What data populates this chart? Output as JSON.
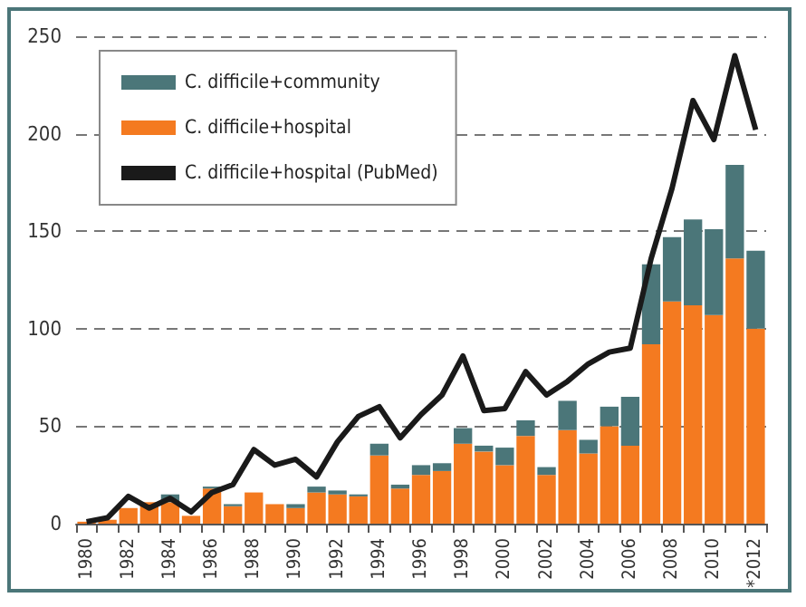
{
  "chart_data": {
    "type": "bar",
    "stacked": true,
    "categories": [
      "1980",
      null,
      "1982",
      null,
      "1984",
      null,
      "1986",
      null,
      "1988",
      null,
      "1990",
      null,
      "1992",
      null,
      "1994",
      null,
      "1996",
      null,
      "1998",
      null,
      "2000",
      null,
      "2002",
      null,
      "2004",
      null,
      "2006",
      null,
      "2008",
      null,
      "2010",
      null,
      "*2012"
    ],
    "series": [
      {
        "name": "C. difficile+hospital",
        "color": "#f47a20",
        "values": [
          1,
          2,
          8,
          11,
          11,
          4,
          18,
          9,
          16,
          10,
          8,
          16,
          15,
          14,
          35,
          18,
          25,
          27,
          41,
          37,
          30,
          45,
          25,
          48,
          36,
          50,
          40,
          92,
          114,
          112,
          107,
          136,
          100
        ]
      },
      {
        "name": "C. difficile+community",
        "color": "#4b7679",
        "values": [
          0,
          0,
          0,
          0,
          4,
          0,
          1,
          1,
          0,
          0,
          2,
          3,
          2,
          1,
          6,
          2,
          5,
          4,
          8,
          3,
          9,
          8,
          4,
          15,
          7,
          10,
          25,
          41,
          33,
          44,
          44,
          48,
          40
        ]
      },
      {
        "name": "C. difficile+hospital (PubMed)",
        "type": "line",
        "color": "#1a1a1a",
        "marker": "none",
        "values": [
          1,
          3,
          14,
          8,
          13,
          6,
          16,
          20,
          38,
          30,
          33,
          24,
          42,
          55,
          60,
          44,
          56,
          66,
          86,
          58,
          59,
          78,
          66,
          73,
          82,
          88,
          90,
          136,
          172,
          217,
          197,
          240,
          202
        ]
      }
    ],
    "ylim": [
      0,
      250
    ],
    "yticks": [
      0,
      50,
      100,
      150,
      200,
      250
    ],
    "grid": "y",
    "legend": "top left"
  }
}
